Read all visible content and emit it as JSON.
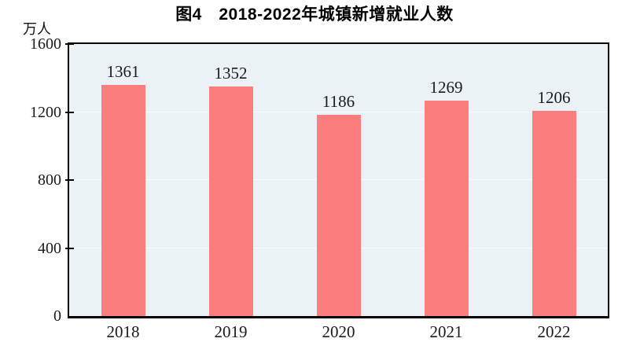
{
  "chart_data": {
    "type": "bar",
    "title": "图4　2018-2022年城镇新增就业人数",
    "unit_label": "万人",
    "categories": [
      "2018",
      "2019",
      "2020",
      "2021",
      "2022"
    ],
    "values": [
      1361,
      1352,
      1186,
      1269,
      1206
    ],
    "ylim": [
      0,
      1600
    ],
    "yticks": [
      0,
      400,
      800,
      1200,
      1600
    ],
    "grid": true,
    "legend_position": "none",
    "bar_color": "#fb7d7d",
    "plot_background": "#ebf2f6",
    "gridline_color": "#f8fcfd",
    "axis_color": "#000000",
    "label_color": "#1a1a1a"
  }
}
